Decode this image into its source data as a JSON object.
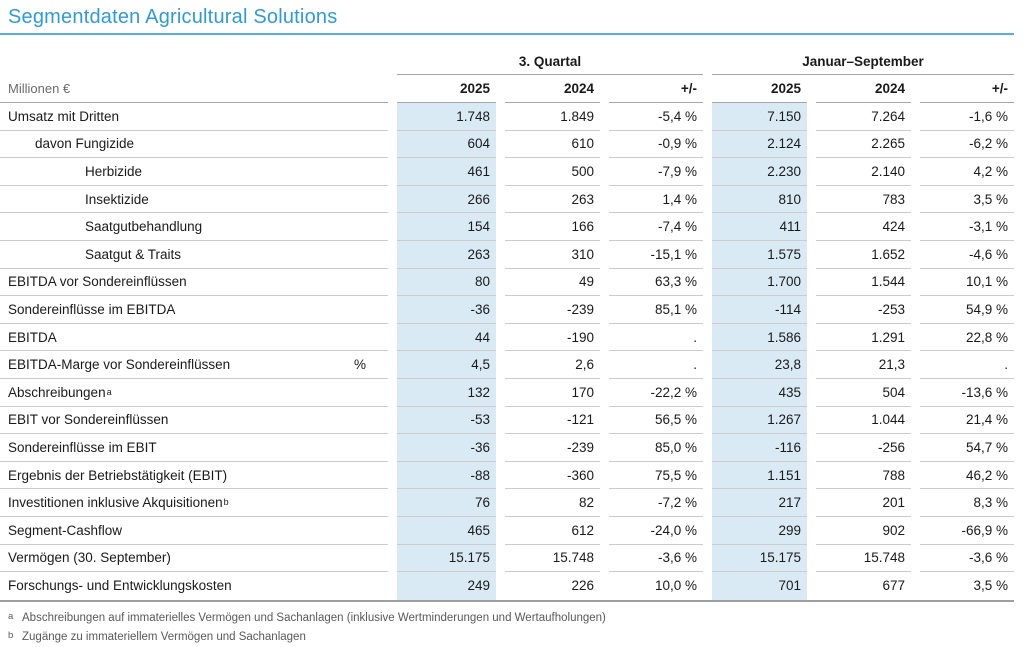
{
  "title": "Segmentdaten Agricultural Solutions",
  "unit_label": "Millionen €",
  "column_groups": {
    "quarter": "3. Quartal",
    "nine_months": "Januar–September"
  },
  "year_headers": [
    "2025",
    "2024",
    "+/-",
    "2025",
    "2024",
    "+/-"
  ],
  "colors": {
    "accent_blue": "#2f9bd6",
    "title_rule_blue": "#55aedd",
    "highlight_column": "#daeaf5"
  },
  "table": {
    "rows": [
      {
        "label": "Umsatz mit Dritten",
        "indent": 0,
        "values": [
          "1.748",
          "1.849",
          "-5,4 %",
          "7.150",
          "7.264",
          "-1,6 %"
        ]
      },
      {
        "label": "davon Fungizide",
        "indent": 1,
        "values": [
          "604",
          "610",
          "-0,9 %",
          "2.124",
          "2.265",
          "-6,2 %"
        ]
      },
      {
        "label": "Herbizide",
        "indent": 2,
        "values": [
          "461",
          "500",
          "-7,9 %",
          "2.230",
          "2.140",
          "4,2 %"
        ]
      },
      {
        "label": "Insektizide",
        "indent": 2,
        "values": [
          "266",
          "263",
          "1,4 %",
          "810",
          "783",
          "3,5 %"
        ]
      },
      {
        "label": "Saatgutbehandlung",
        "indent": 2,
        "values": [
          "154",
          "166",
          "-7,4 %",
          "411",
          "424",
          "-3,1 %"
        ]
      },
      {
        "label": "Saatgut & Traits",
        "indent": 2,
        "values": [
          "263",
          "310",
          "-15,1 %",
          "1.575",
          "1.652",
          "-4,6 %"
        ]
      },
      {
        "label": "EBITDA vor Sondereinflüssen",
        "indent": 0,
        "values": [
          "80",
          "49",
          "63,3 %",
          "1.700",
          "1.544",
          "10,1 %"
        ]
      },
      {
        "label": "Sondereinflüsse im EBITDA",
        "indent": 0,
        "values": [
          "-36",
          "-239",
          "85,1 %",
          "-114",
          "-253",
          "54,9 %"
        ]
      },
      {
        "label": "EBITDA",
        "indent": 0,
        "values": [
          "44",
          "-190",
          ".",
          "1.586",
          "1.291",
          "22,8 %"
        ]
      },
      {
        "label": "EBITDA-Marge vor Sondereinflüssen",
        "unit": "%",
        "indent": 0,
        "values": [
          "4,5",
          "2,6",
          ".",
          "23,8",
          "21,3",
          "."
        ]
      },
      {
        "label": "Abschreibungen",
        "sup": "a",
        "indent": 0,
        "values": [
          "132",
          "170",
          "-22,2 %",
          "435",
          "504",
          "-13,6 %"
        ]
      },
      {
        "label": "EBIT vor Sondereinflüssen",
        "indent": 0,
        "values": [
          "-53",
          "-121",
          "56,5 %",
          "1.267",
          "1.044",
          "21,4 %"
        ]
      },
      {
        "label": "Sondereinflüsse im EBIT",
        "indent": 0,
        "values": [
          "-36",
          "-239",
          "85,0 %",
          "-116",
          "-256",
          "54,7 %"
        ]
      },
      {
        "label": "Ergebnis der Betriebstätigkeit (EBIT)",
        "indent": 0,
        "values": [
          "-88",
          "-360",
          "75,5 %",
          "1.151",
          "788",
          "46,2 %"
        ]
      },
      {
        "label": "Investitionen inklusive Akquisitionen",
        "sup": "b",
        "indent": 0,
        "values": [
          "76",
          "82",
          "-7,2 %",
          "217",
          "201",
          "8,3 %"
        ]
      },
      {
        "label": "Segment-Cashflow",
        "indent": 0,
        "values": [
          "465",
          "612",
          "-24,0 %",
          "299",
          "902",
          "-66,9 %"
        ]
      },
      {
        "label": "Vermögen (30. September)",
        "indent": 0,
        "values": [
          "15.175",
          "15.748",
          "-3,6 %",
          "15.175",
          "15.748",
          "-3,6 %"
        ]
      },
      {
        "label": "Forschungs- und Entwicklungskosten",
        "indent": 0,
        "values": [
          "249",
          "226",
          "10,0 %",
          "701",
          "677",
          "3,5 %"
        ]
      }
    ]
  },
  "footnotes": [
    {
      "marker": "a",
      "text": "Abschreibungen auf immaterielles Vermögen und Sachanlagen (inklusive Wertminderungen und Wertaufholungen)"
    },
    {
      "marker": "b",
      "text": "Zugänge zu immateriellem Vermögen und Sachanlagen"
    }
  ]
}
